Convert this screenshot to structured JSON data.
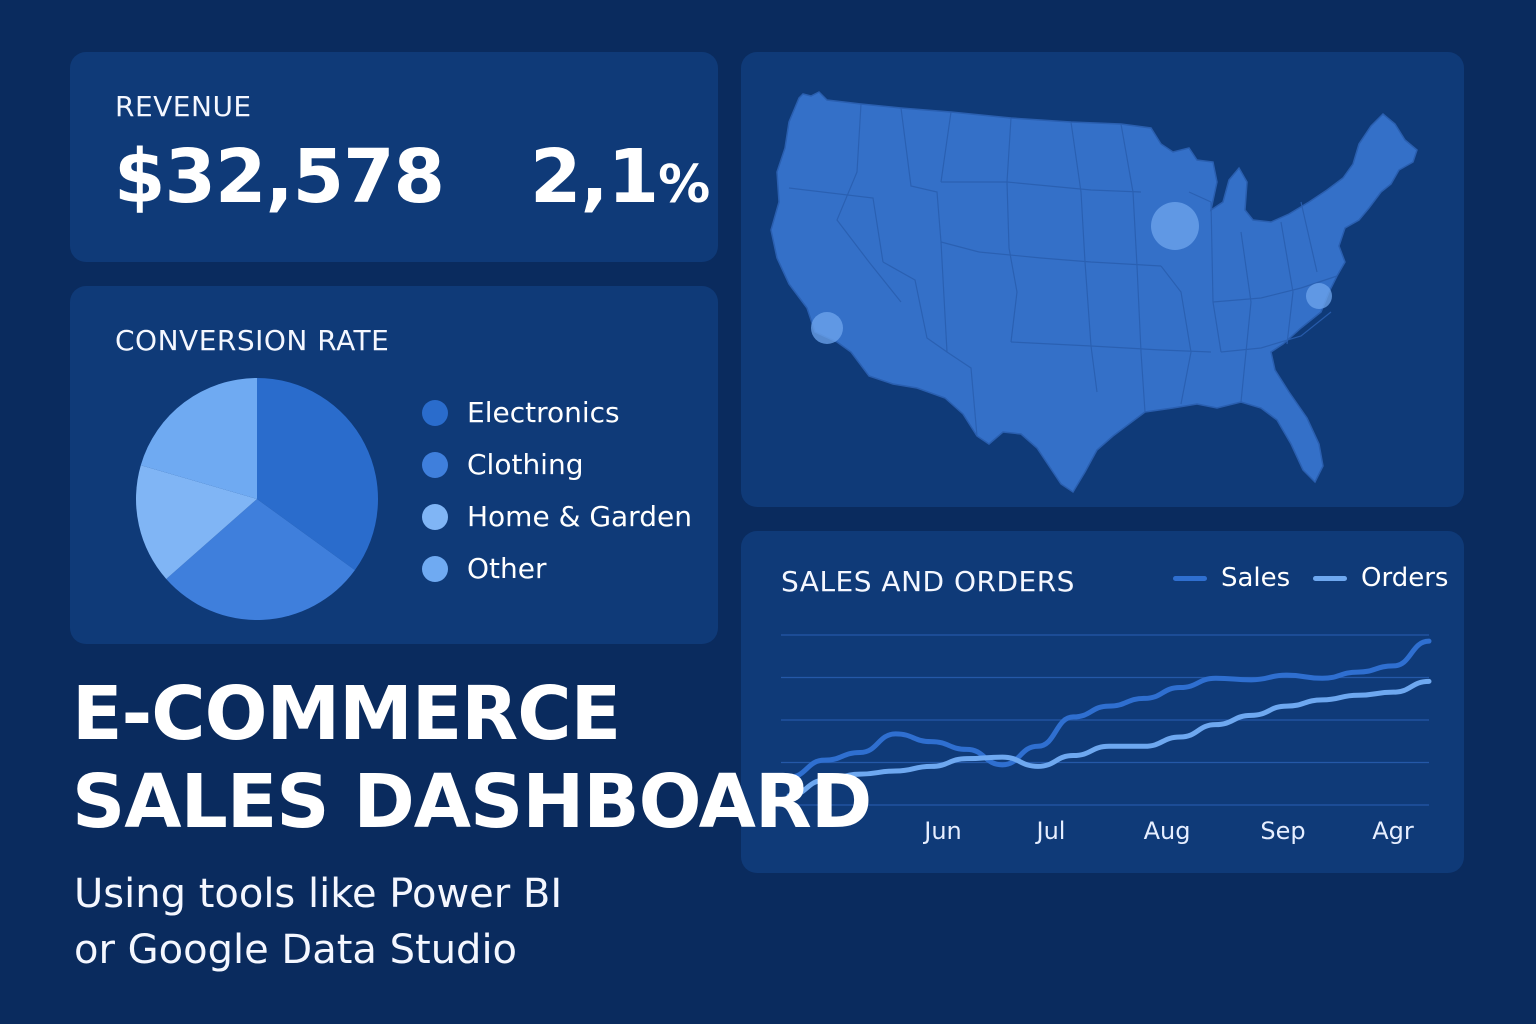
{
  "colors": {
    "background": "#0a2b5e",
    "card": "#0f3a78",
    "accent_dark": "#2a6ccc",
    "accent_mid": "#3f7fdc",
    "accent_light": "#80b5f5",
    "accent_lighter": "#6faaf2",
    "map_fill": "#3470c8"
  },
  "revenue": {
    "title": "REVENUE",
    "value": "$32,578",
    "change_number": "2,1",
    "change_unit": "%"
  },
  "conversion": {
    "title": "CONVERSION RATE",
    "legend": [
      {
        "label": "Electronics",
        "color": "#2a6ccc",
        "icon": "circle-icon"
      },
      {
        "label": "Clothing",
        "color": "#3f7fdc",
        "icon": "circle-icon"
      },
      {
        "label": "Home & Garden",
        "color": "#80b5f5",
        "icon": "circle-icon"
      },
      {
        "label": "Other",
        "color": "#6faaf2",
        "icon": "circle-icon"
      }
    ]
  },
  "map": {
    "label": "United States sales map",
    "hotspots": [
      "Los Angeles",
      "Chicago",
      "Raleigh"
    ]
  },
  "sales_orders": {
    "title": "SALES AND ORDERS",
    "legend_sales": "Sales",
    "legend_orders": "Orders"
  },
  "chart_data": {
    "type": "line",
    "title": "SALES AND ORDERS",
    "categories": [
      "Jun",
      "Jul",
      "Aug",
      "Sep",
      "Agr"
    ],
    "x": [
      0,
      0.5,
      1,
      1.5,
      2,
      2.5,
      3,
      3.5,
      4,
      4.5,
      5,
      5.5,
      6,
      6.5,
      7,
      7.5,
      8,
      8.5,
      9
    ],
    "series": [
      {
        "name": "Sales",
        "color": "#2f6fd0",
        "values": [
          0.8,
          1.9,
          2.4,
          3.6,
          3.1,
          2.6,
          1.6,
          2.8,
          4.7,
          5.4,
          5.9,
          6.6,
          7.2,
          7.1,
          7.4,
          7.2,
          7.6,
          8.0,
          9.6
        ]
      },
      {
        "name": "Orders",
        "color": "#6ea8f0",
        "values": [
          -0.4,
          0.6,
          1.0,
          1.2,
          1.5,
          2.0,
          2.1,
          1.5,
          2.2,
          2.8,
          2.8,
          3.4,
          4.2,
          4.8,
          5.4,
          5.8,
          6.1,
          6.3,
          7.0
        ]
      }
    ],
    "ylim": [
      -1,
      10
    ],
    "grid": true,
    "xlabel": "",
    "ylabel": "",
    "legend_position": "top-right"
  },
  "pie_data": {
    "type": "pie",
    "labels": [
      "Electronics",
      "Clothing",
      "Home & Garden",
      "Other"
    ],
    "values": [
      35.0,
      28.5,
      16.0,
      20.5
    ],
    "colors": [
      "#2a6ccc",
      "#3f7fdc",
      "#80b5f5",
      "#6faaf2"
    ]
  },
  "headline": {
    "line1": "E-COMMERCE",
    "line2": "SALES DASHBOARD",
    "subtitle_line1": "Using tools like Power BI",
    "subtitle_line2": "or Google Data Studio"
  }
}
